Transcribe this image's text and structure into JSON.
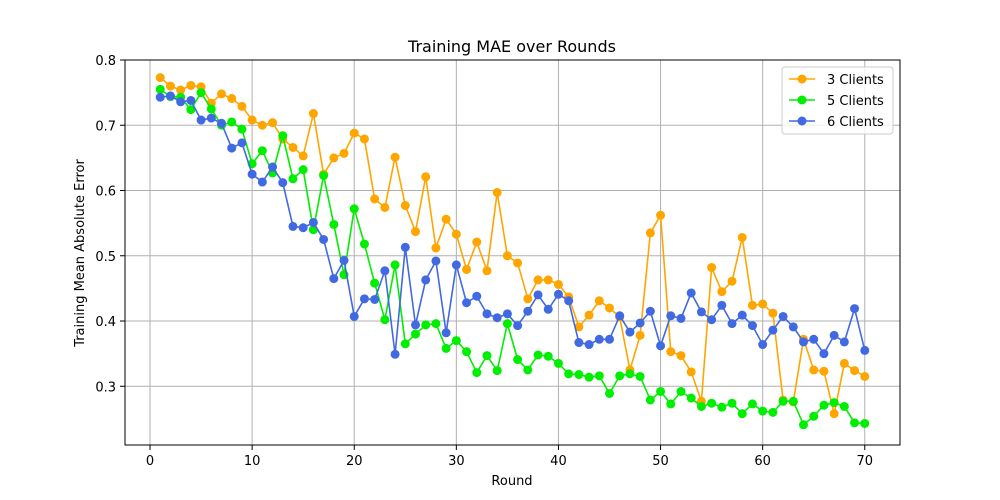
{
  "chart_data": {
    "type": "line",
    "title": "Training MAE over Rounds",
    "xlabel": "Round",
    "ylabel": "Training Mean Absolute Error",
    "xlim": [
      -2.45,
      73.45
    ],
    "ylim": [
      0.21,
      0.8
    ],
    "xticks": [
      0,
      10,
      20,
      30,
      40,
      50,
      60,
      70
    ],
    "yticks": [
      0.3,
      0.4,
      0.5,
      0.6,
      0.7,
      0.8
    ],
    "grid": true,
    "legend_position": "top-right",
    "x": [
      1,
      2,
      3,
      4,
      5,
      6,
      7,
      8,
      9,
      10,
      11,
      12,
      13,
      14,
      15,
      16,
      17,
      18,
      19,
      20,
      21,
      22,
      23,
      24,
      25,
      26,
      27,
      28,
      29,
      30,
      31,
      32,
      33,
      34,
      35,
      36,
      37,
      38,
      39,
      40,
      41,
      42,
      43,
      44,
      45,
      46,
      47,
      48,
      49,
      50,
      51,
      52,
      53,
      54,
      55,
      56,
      57,
      58,
      59,
      60,
      61,
      62,
      63,
      64,
      65,
      66,
      67,
      68,
      69,
      70
    ],
    "series": [
      {
        "name": "3 Clients",
        "color": "#FFA500",
        "values": [
          0.773,
          0.76,
          0.754,
          0.761,
          0.759,
          0.734,
          0.748,
          0.741,
          0.729,
          0.708,
          0.7,
          0.704,
          0.679,
          0.666,
          0.653,
          0.718,
          0.625,
          0.65,
          0.657,
          0.688,
          0.679,
          0.587,
          0.574,
          0.651,
          0.577,
          0.537,
          0.621,
          0.512,
          0.556,
          0.533,
          0.479,
          0.521,
          0.477,
          0.597,
          0.5,
          0.489,
          0.434,
          0.463,
          0.463,
          0.456,
          0.437,
          0.391,
          0.409,
          0.431,
          0.42,
          0.406,
          0.325,
          0.378,
          0.535,
          0.562,
          0.353,
          0.347,
          0.322,
          0.277,
          0.482,
          0.445,
          0.461,
          0.528,
          0.424,
          0.426,
          0.412,
          0.279,
          0.276,
          0.372,
          0.325,
          0.323,
          0.258,
          0.335,
          0.324,
          0.315
        ]
      },
      {
        "name": "5 Clients",
        "color": "#00EE00",
        "values": [
          0.755,
          0.744,
          0.743,
          0.724,
          0.75,
          0.725,
          0.7,
          0.705,
          0.694,
          0.641,
          0.661,
          0.627,
          0.684,
          0.618,
          0.632,
          0.54,
          0.623,
          0.548,
          0.471,
          0.572,
          0.518,
          0.458,
          0.402,
          0.486,
          0.365,
          0.38,
          0.394,
          0.396,
          0.358,
          0.37,
          0.353,
          0.321,
          0.347,
          0.324,
          0.396,
          0.341,
          0.325,
          0.348,
          0.346,
          0.335,
          0.319,
          0.318,
          0.314,
          0.316,
          0.289,
          0.316,
          0.319,
          0.315,
          0.279,
          0.292,
          0.273,
          0.292,
          0.282,
          0.269,
          0.274,
          0.268,
          0.274,
          0.258,
          0.273,
          0.262,
          0.26,
          0.277,
          0.277,
          0.241,
          0.254,
          0.271,
          0.275,
          0.269,
          0.244,
          0.243
        ]
      },
      {
        "name": "6 Clients",
        "color": "#4169E1",
        "values": [
          0.743,
          0.745,
          0.736,
          0.738,
          0.708,
          0.711,
          0.703,
          0.665,
          0.673,
          0.625,
          0.613,
          0.636,
          0.612,
          0.545,
          0.543,
          0.551,
          0.525,
          0.465,
          0.493,
          0.407,
          0.434,
          0.433,
          0.477,
          0.349,
          0.513,
          0.394,
          0.463,
          0.492,
          0.382,
          0.486,
          0.428,
          0.438,
          0.411,
          0.405,
          0.411,
          0.393,
          0.415,
          0.44,
          0.418,
          0.441,
          0.431,
          0.367,
          0.364,
          0.372,
          0.372,
          0.408,
          0.383,
          0.397,
          0.415,
          0.362,
          0.408,
          0.404,
          0.443,
          0.414,
          0.402,
          0.424,
          0.396,
          0.409,
          0.393,
          0.364,
          0.386,
          0.407,
          0.391,
          0.368,
          0.372,
          0.35,
          0.378,
          0.368,
          0.419,
          0.355
        ]
      }
    ]
  }
}
